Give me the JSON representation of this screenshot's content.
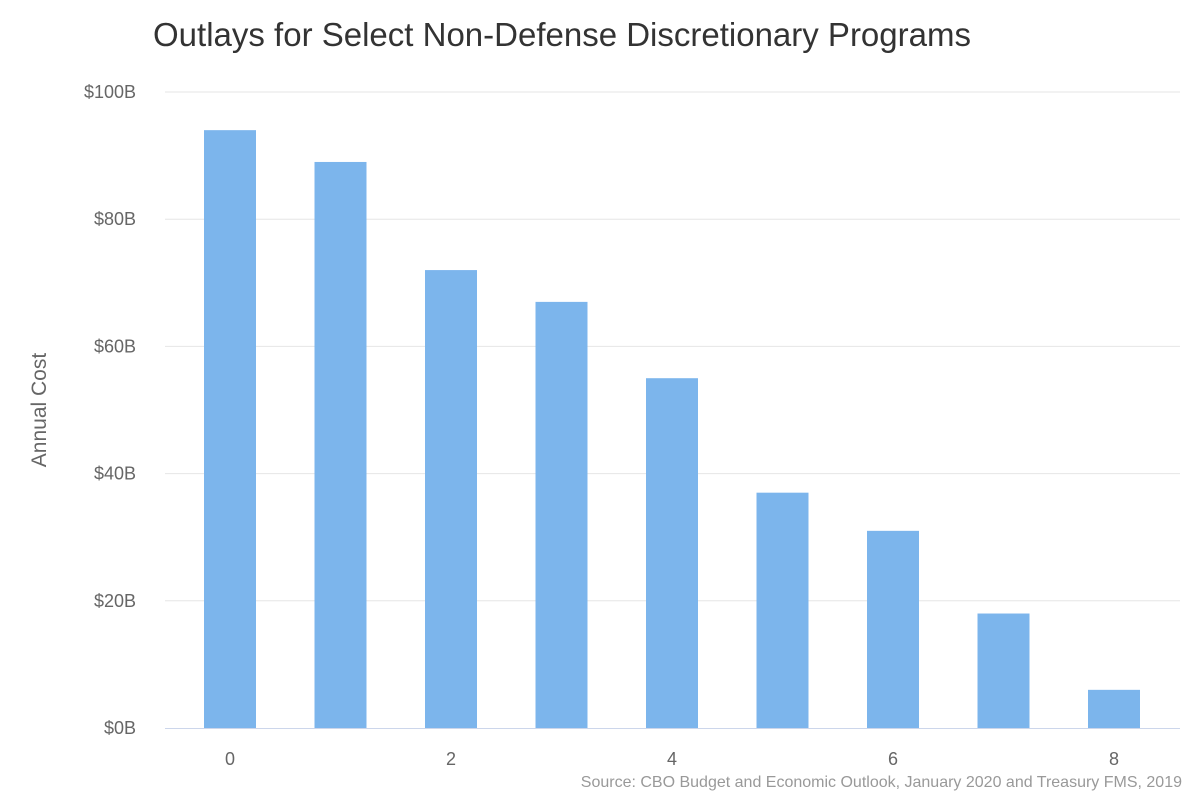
{
  "chart_data": {
    "type": "bar",
    "title": "Outlays for Select Non-Defense Discretionary Programs",
    "xlabel": "",
    "ylabel": "Annual Cost",
    "source": "Source: CBO Budget and Economic Outlook, January 2020 and Treasury FMS, 2019",
    "categories": [
      0,
      1,
      2,
      3,
      4,
      5,
      6,
      7,
      8
    ],
    "x_tick_labels": [
      "0",
      "2",
      "4",
      "6",
      "8"
    ],
    "x_tick_values": [
      0,
      2,
      4,
      6,
      8
    ],
    "values": [
      94,
      89,
      72,
      67,
      55,
      37,
      31,
      18,
      6
    ],
    "ylim": [
      0,
      100
    ],
    "y_ticks": [
      0,
      20,
      40,
      60,
      80,
      100
    ],
    "y_tick_labels": [
      "$0B",
      "$20B",
      "$40B",
      "$60B",
      "$80B",
      "$100B"
    ],
    "grid": true,
    "legend": "none",
    "colors": {
      "bar": "#7cb5ec",
      "grid": "#e6e6e6",
      "axis": "#ccd6eb"
    }
  }
}
